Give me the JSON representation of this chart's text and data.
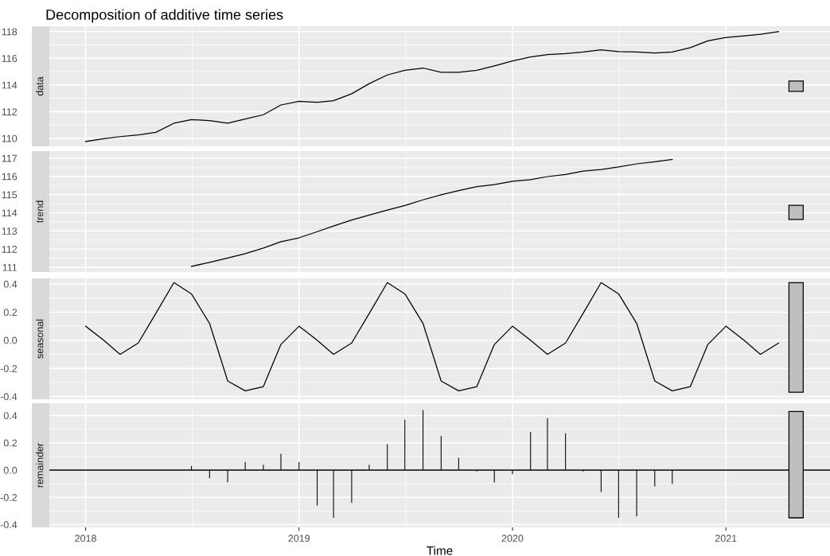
{
  "chart_data": [
    {
      "type": "line",
      "title": "Decomposition of additive time series",
      "ylabel": "data",
      "x": [
        "2018-01",
        "2018-02",
        "2018-03",
        "2018-04",
        "2018-05",
        "2018-06",
        "2018-07",
        "2018-08",
        "2018-09",
        "2018-10",
        "2018-11",
        "2018-12",
        "2019-01",
        "2019-02",
        "2019-03",
        "2019-04",
        "2019-05",
        "2019-06",
        "2019-07",
        "2019-08",
        "2019-09",
        "2019-10",
        "2019-11",
        "2019-12",
        "2020-01",
        "2020-02",
        "2020-03",
        "2020-04",
        "2020-05",
        "2020-06",
        "2020-07",
        "2020-08",
        "2020-09",
        "2020-10",
        "2020-11",
        "2020-12",
        "2021-01",
        "2021-02",
        "2021-03",
        "2021-04"
      ],
      "series": [
        {
          "color": "#000000",
          "values": [
            109.76,
            109.97,
            110.13,
            110.25,
            110.45,
            111.13,
            111.41,
            111.33,
            111.13,
            111.45,
            111.77,
            112.5,
            112.78,
            112.7,
            112.82,
            113.34,
            114.1,
            114.75,
            115.1,
            115.27,
            114.95,
            114.95,
            115.1,
            115.43,
            115.8,
            116.1,
            116.27,
            116.35,
            116.47,
            116.63,
            116.5,
            116.47,
            116.39,
            116.47,
            116.8,
            117.3,
            117.56,
            117.68,
            117.8,
            118.0
          ]
        },
        {
          "type": "bar",
          "color": "#bebebe",
          "x": [
            "2021-05"
          ],
          "base": [
            113.52
          ],
          "values": [
            0.78
          ]
        }
      ],
      "xlim": [
        "2017-10-31",
        "2021-06-28"
      ],
      "xticks": [
        {
          "value": "2018-01-01",
          "label": null
        },
        {
          "value": "2019-01-01",
          "label": null
        },
        {
          "value": "2020-01-01",
          "label": null
        },
        {
          "value": "2021-01-01",
          "label": null
        }
      ],
      "ylim": [
        109.4,
        118.4
      ],
      "yticks": [
        110,
        112,
        114,
        116,
        118
      ],
      "grid": true,
      "tick_labels": "y"
    },
    {
      "type": "line",
      "ylabel": "trend",
      "x": [
        "2018-07",
        "2018-08",
        "2018-09",
        "2018-10",
        "2018-11",
        "2018-12",
        "2019-01",
        "2019-02",
        "2019-03",
        "2019-04",
        "2019-05",
        "2019-06",
        "2019-07",
        "2019-08",
        "2019-09",
        "2019-10",
        "2019-11",
        "2019-12",
        "2020-01",
        "2020-02",
        "2020-03",
        "2020-04",
        "2020-05",
        "2020-06",
        "2020-07",
        "2020-08",
        "2020-09",
        "2020-10"
      ],
      "series": [
        {
          "color": "#000000",
          "values": [
            111.05,
            111.27,
            111.51,
            111.75,
            112.06,
            112.41,
            112.62,
            112.96,
            113.27,
            113.6,
            113.87,
            114.15,
            114.4,
            114.71,
            114.99,
            115.22,
            115.44,
            115.55,
            115.73,
            115.82,
            115.99,
            116.1,
            116.29,
            116.38,
            116.52,
            116.69,
            116.8,
            116.93
          ]
        },
        {
          "type": "bar",
          "color": "#bebebe",
          "x": [
            "2021-05"
          ],
          "base": [
            113.63
          ],
          "values": [
            0.78
          ]
        }
      ],
      "xlim": [
        "2017-10-31",
        "2021-06-28"
      ],
      "xticks": [
        {
          "value": "2018-01-01",
          "label": null
        },
        {
          "value": "2019-01-01",
          "label": null
        },
        {
          "value": "2020-01-01",
          "label": null
        },
        {
          "value": "2021-01-01",
          "label": null
        }
      ],
      "ylim": [
        110.74,
        117.39
      ],
      "yticks": [
        111,
        112,
        113,
        114,
        115,
        116,
        117
      ],
      "grid": true,
      "tick_labels": "y"
    },
    {
      "type": "line",
      "ylabel": "seasonal",
      "x": [
        "2018-01",
        "2018-02",
        "2018-03",
        "2018-04",
        "2018-05",
        "2018-06",
        "2018-07",
        "2018-08",
        "2018-09",
        "2018-10",
        "2018-11",
        "2018-12",
        "2019-01",
        "2019-02",
        "2019-03",
        "2019-04",
        "2019-05",
        "2019-06",
        "2019-07",
        "2019-08",
        "2019-09",
        "2019-10",
        "2019-11",
        "2019-12",
        "2020-01",
        "2020-02",
        "2020-03",
        "2020-04",
        "2020-05",
        "2020-06",
        "2020-07",
        "2020-08",
        "2020-09",
        "2020-10",
        "2020-11",
        "2020-12",
        "2021-01",
        "2021-02",
        "2021-03",
        "2021-04"
      ],
      "series": [
        {
          "color": "#000000",
          "values": [
            0.1,
            0.0,
            -0.1,
            -0.02,
            0.19,
            0.41,
            0.33,
            0.12,
            -0.29,
            -0.36,
            -0.33,
            -0.03,
            0.1,
            0.0,
            -0.1,
            -0.02,
            0.19,
            0.41,
            0.33,
            0.12,
            -0.29,
            -0.36,
            -0.33,
            -0.03,
            0.1,
            0.0,
            -0.1,
            -0.02,
            0.19,
            0.41,
            0.33,
            0.12,
            -0.29,
            -0.36,
            -0.33,
            -0.03,
            0.1,
            0.0,
            -0.1,
            -0.02
          ]
        },
        {
          "type": "bar",
          "color": "#bebebe",
          "x": [
            "2021-05"
          ],
          "base": [
            -0.37
          ],
          "values": [
            0.78
          ]
        }
      ],
      "xlim": [
        "2017-10-31",
        "2021-06-28"
      ],
      "xticks": [
        {
          "value": "2018-01-01",
          "label": null
        },
        {
          "value": "2019-01-01",
          "label": null
        },
        {
          "value": "2020-01-01",
          "label": null
        },
        {
          "value": "2021-01-01",
          "label": null
        }
      ],
      "ylim": [
        -0.42,
        0.44
      ],
      "yticks": [
        -0.4,
        -0.2,
        {
          "value": 0,
          "label": "0.0"
        },
        0.2,
        0.4
      ],
      "grid": true,
      "tick_labels": "y"
    },
    {
      "type": "bar",
      "ylabel": "remainder",
      "xlabel": "Time",
      "x": [
        "2018-07",
        "2018-08",
        "2018-09",
        "2018-10",
        "2018-11",
        "2018-12",
        "2019-01",
        "2019-02",
        "2019-03",
        "2019-04",
        "2019-05",
        "2019-06",
        "2019-07",
        "2019-08",
        "2019-09",
        "2019-10",
        "2019-11",
        "2019-12",
        "2020-01",
        "2020-02",
        "2020-03",
        "2020-04",
        "2020-05",
        "2020-06",
        "2020-07",
        "2020-08",
        "2020-09",
        "2020-10"
      ],
      "series": [
        {
          "color": "#000000",
          "values": [
            0.03,
            -0.06,
            -0.09,
            0.06,
            0.04,
            0.12,
            0.06,
            -0.26,
            -0.35,
            -0.24,
            0.04,
            0.19,
            0.37,
            0.44,
            0.25,
            0.09,
            -0.01,
            -0.09,
            -0.03,
            0.28,
            0.38,
            0.27,
            -0.01,
            -0.16,
            -0.35,
            -0.34,
            -0.12,
            -0.1
          ]
        },
        {
          "type": "bar",
          "color": "#bebebe",
          "x": [
            "2021-05"
          ],
          "base": [
            -0.35
          ],
          "values": [
            0.78
          ]
        }
      ],
      "ref_lines": [
        {
          "axis": "y",
          "value": 0,
          "color": "#000000"
        }
      ],
      "xlim": [
        "2017-10-31",
        "2021-06-28"
      ],
      "xticks": [
        {
          "value": "2018-01-01",
          "label": "2018"
        },
        {
          "value": "2019-01-01",
          "label": "2019"
        },
        {
          "value": "2020-01-01",
          "label": "2020"
        },
        {
          "value": "2021-01-01",
          "label": "2021"
        }
      ],
      "ylim": [
        -0.42,
        0.49
      ],
      "yticks": [
        -0.4,
        -0.2,
        {
          "value": 0,
          "label": "0.0"
        },
        0.2,
        0.4
      ],
      "grid": true
    }
  ]
}
